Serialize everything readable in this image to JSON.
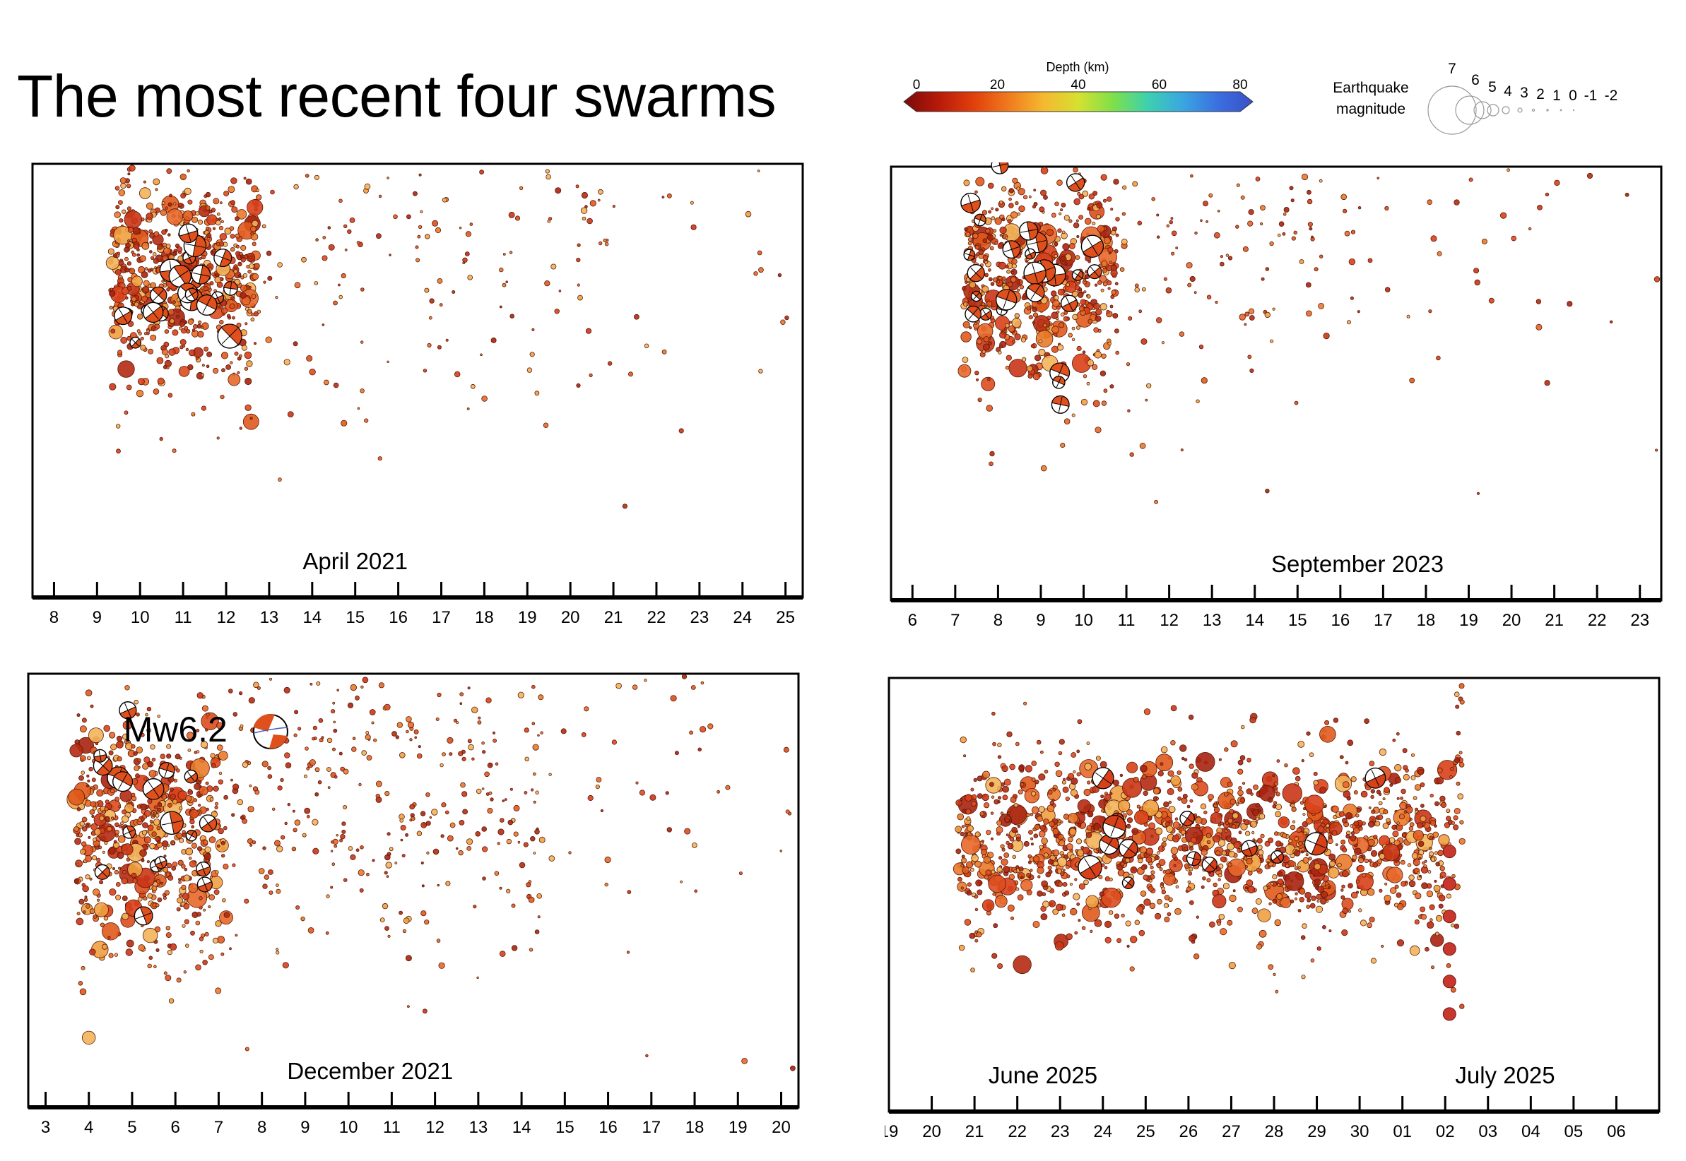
{
  "page_title": "The most recent four swarms",
  "depth_legend": {
    "label": "Depth (km)",
    "ticks": [
      "0",
      "20",
      "40",
      "60",
      "80"
    ],
    "range_km": [
      0,
      80
    ],
    "stops": [
      "#7a0a0a",
      "#b81a0a",
      "#e0400c",
      "#f07a1e",
      "#f5b830",
      "#d6e030",
      "#7ee04a",
      "#3cd0b0",
      "#3aa6e0",
      "#3a6fe0",
      "#3a50c8"
    ]
  },
  "magnitude_legend": {
    "label": "Earthquake magnitude",
    "labels": [
      "7",
      "6",
      "5",
      "4",
      "3",
      "2",
      "1",
      "0",
      "-1",
      "-2"
    ]
  },
  "chart_data": [
    {
      "type": "scatter",
      "label": "April 2021",
      "x_ticks": [
        "8",
        "9",
        "10",
        "11",
        "12",
        "13",
        "14",
        "15",
        "16",
        "17",
        "18",
        "19",
        "20",
        "21",
        "22",
        "23",
        "24",
        "25"
      ],
      "x_range": [
        7.5,
        25.4
      ],
      "y": "relative position (unlabelled)",
      "swarm": {
        "core": [
          9.3,
          12.7
        ],
        "sparse": [
          12.7,
          21.3
        ],
        "tail": [
          21.3,
          25.4
        ]
      },
      "focal_mechanisms_count": 22
    },
    {
      "type": "scatter",
      "label": "September 2023",
      "x_ticks": [
        "6",
        "7",
        "8",
        "9",
        "10",
        "11",
        "12",
        "13",
        "14",
        "15",
        "16",
        "17",
        "18",
        "19",
        "20",
        "21",
        "22",
        "23"
      ],
      "x_range": [
        5.5,
        23.5
      ],
      "y": "relative position (unlabelled)",
      "swarm": {
        "core": [
          7.2,
          10.8
        ],
        "sparse": [
          10.8,
          16.5
        ],
        "tail": [
          16.5,
          23.5
        ]
      },
      "focal_mechanisms_count": 26
    },
    {
      "type": "scatter",
      "label": "December 2021",
      "annotation": "Mw6.2",
      "x_ticks": [
        "3",
        "4",
        "5",
        "6",
        "7",
        "8",
        "9",
        "10",
        "11",
        "12",
        "13",
        "14",
        "15",
        "16",
        "17",
        "18",
        "19",
        "20"
      ],
      "x_range": [
        2.6,
        20.4
      ],
      "y": "relative position (unlabelled)",
      "swarm": {
        "core": [
          3.7,
          7.2
        ],
        "sparse": [
          7.2,
          14.5
        ],
        "tail": [
          14.5,
          20.4
        ]
      },
      "focal_mechanisms_count": 18
    },
    {
      "type": "scatter",
      "label": "June 2025",
      "label_2": "July 2025",
      "x_ticks": [
        "19",
        "20",
        "21",
        "22",
        "23",
        "24",
        "25",
        "26",
        "27",
        "28",
        "29",
        "30",
        "01",
        "02",
        "03",
        "04",
        "05",
        "06"
      ],
      "x_range": [
        0,
        18
      ],
      "y": "relative position (unlabelled)",
      "swarm": {
        "core": [
          1.6,
          13.1
        ],
        "sparse": [
          13.1,
          13.4
        ],
        "tail": [
          13.4,
          18
        ]
      },
      "focal_mechanisms_count": 14
    }
  ]
}
